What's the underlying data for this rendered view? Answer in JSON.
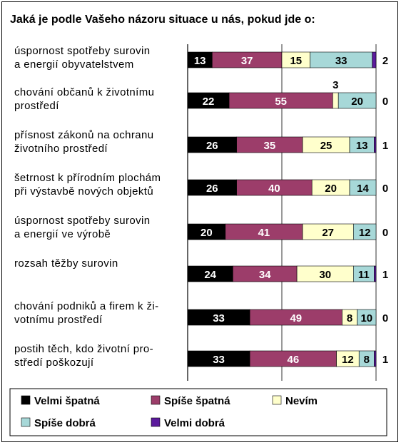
{
  "chart_data": {
    "type": "bar",
    "orientation": "horizontal",
    "stacked": true,
    "title": "Jaká je podle Vašeho názoru situace u nás, pokud jde o:",
    "xlim": [
      0,
      100
    ],
    "grid": true,
    "legend_position": "bottom",
    "categories": [
      [
        "úspornost spotřeby surovin",
        "a energií obyvatelstvem"
      ],
      [
        "chování občanů k životnímu",
        "prostředí"
      ],
      [
        "přísnost zákonů na ochranu",
        "životního prostředí"
      ],
      [
        "šetrnost k přírodním plochám",
        "při výstavbě nových objektů"
      ],
      [
        "úspornost spotřeby surovin",
        "a energií ve výrobě"
      ],
      [
        "rozsah těžby surovin"
      ],
      [
        "chování podniků a firem k ži-",
        "votnímu prostředí"
      ],
      [
        "postih těch, kdo životní pro-",
        "středí poškozují"
      ]
    ],
    "series": [
      {
        "name": "Velmi špatná",
        "color": "#000000",
        "label_color": "#ffffff",
        "values": [
          13,
          22,
          26,
          26,
          20,
          24,
          33,
          33
        ]
      },
      {
        "name": "Spíše špatná",
        "color": "#9c3d6a",
        "label_color": "#ffffff",
        "values": [
          37,
          55,
          35,
          40,
          41,
          34,
          49,
          46
        ]
      },
      {
        "name": "Nevím",
        "color": "#ffffcc",
        "label_color": "#000000",
        "values": [
          15,
          3,
          25,
          20,
          27,
          30,
          8,
          12
        ]
      },
      {
        "name": "Spíše dobrá",
        "color": "#a7d8d8",
        "label_color": "#000000",
        "values": [
          33,
          20,
          13,
          14,
          12,
          11,
          10,
          8
        ]
      },
      {
        "name": "Velmi dobrá",
        "color": "#5b1a9c",
        "label_color": "#000000",
        "values": [
          2,
          0,
          1,
          0,
          0,
          1,
          0,
          1
        ]
      }
    ]
  }
}
